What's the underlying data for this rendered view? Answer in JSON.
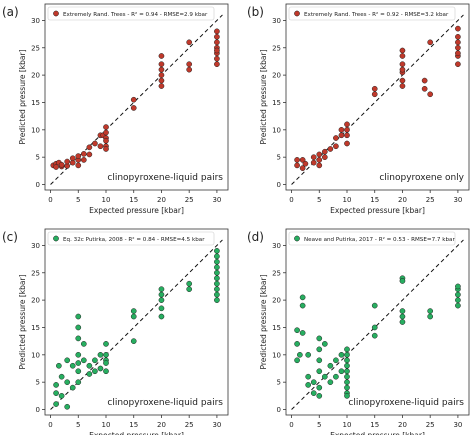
{
  "chart_data": [
    {
      "type": "scatter",
      "panel_label": "(a)",
      "legend_text": "Extremely Rand. Trees - R² = 0.94 - RMSE=2.9 kbar",
      "legend_location": "top-left",
      "annotation": "clinopyroxene-liquid pairs",
      "xlabel": "Expected pressure  [kbar]",
      "ylabel": "Predicted pressure  [kbar]",
      "xlim": [
        -1,
        32
      ],
      "ylim": [
        -1,
        33
      ],
      "xticks": [
        0,
        5,
        10,
        15,
        20,
        25,
        30
      ],
      "yticks": [
        0,
        5,
        10,
        15,
        20,
        25,
        30
      ],
      "identity_line": true,
      "marker_color": "#c0392b",
      "points": [
        [
          0.5,
          3.5
        ],
        [
          1,
          3.8
        ],
        [
          1,
          3.2
        ],
        [
          1.5,
          4
        ],
        [
          2,
          3.3
        ],
        [
          2,
          3.6
        ],
        [
          3,
          3.4
        ],
        [
          3,
          4.2
        ],
        [
          4,
          4
        ],
        [
          4,
          4.8
        ],
        [
          5,
          4.5
        ],
        [
          5,
          3.5
        ],
        [
          5,
          5.2
        ],
        [
          6,
          5.6
        ],
        [
          6,
          4.5
        ],
        [
          7,
          5.5
        ],
        [
          7,
          6.8
        ],
        [
          8,
          7.5
        ],
        [
          9,
          7
        ],
        [
          9,
          9
        ],
        [
          9.5,
          9
        ],
        [
          10,
          10.5
        ],
        [
          10,
          9.5
        ],
        [
          10,
          8.5
        ],
        [
          10,
          8
        ],
        [
          10,
          7
        ],
        [
          10,
          6.5
        ],
        [
          15,
          15.5
        ],
        [
          15,
          14
        ],
        [
          20,
          18
        ],
        [
          20,
          20
        ],
        [
          20,
          21
        ],
        [
          20,
          22
        ],
        [
          20,
          23.5
        ],
        [
          20,
          19
        ],
        [
          25,
          21
        ],
        [
          25,
          22
        ],
        [
          25,
          26
        ],
        [
          30,
          22
        ],
        [
          30,
          23
        ],
        [
          30,
          24
        ],
        [
          30,
          25
        ],
        [
          30,
          26
        ],
        [
          30,
          27
        ],
        [
          30,
          28
        ],
        [
          30,
          24.5
        ]
      ]
    },
    {
      "type": "scatter",
      "panel_label": "(b)",
      "legend_text": "Extremely Rand. Trees - R² = 0.92 - RMSE=3.2 kbar",
      "legend_location": "top-left",
      "annotation": "clinopyroxene only",
      "xlabel": "Expected pressure  [kbar]",
      "ylabel": "Predicted pressure  [kbar]",
      "xlim": [
        -1,
        32
      ],
      "ylim": [
        -1,
        33
      ],
      "xticks": [
        0,
        5,
        10,
        15,
        20,
        25,
        30
      ],
      "yticks": [
        0,
        5,
        10,
        15,
        20,
        25,
        30
      ],
      "identity_line": true,
      "marker_color": "#c0392b",
      "points": [
        [
          1,
          4.5
        ],
        [
          1,
          3.5
        ],
        [
          2,
          3
        ],
        [
          2,
          4.5
        ],
        [
          2.5,
          3.8
        ],
        [
          4,
          4
        ],
        [
          4,
          5
        ],
        [
          5,
          5.5
        ],
        [
          5,
          4.5
        ],
        [
          5,
          3.5
        ],
        [
          6,
          6
        ],
        [
          6,
          5
        ],
        [
          7,
          6.5
        ],
        [
          8,
          8.5
        ],
        [
          8,
          7
        ],
        [
          9,
          10
        ],
        [
          9,
          9
        ],
        [
          10,
          11
        ],
        [
          10,
          10
        ],
        [
          10,
          9
        ],
        [
          10,
          7.5
        ],
        [
          15,
          16.5
        ],
        [
          15,
          17.5
        ],
        [
          20,
          19
        ],
        [
          20,
          20.5
        ],
        [
          20,
          22
        ],
        [
          20,
          23.5
        ],
        [
          20,
          24.5
        ],
        [
          20,
          21
        ],
        [
          20,
          18
        ],
        [
          24,
          17.5
        ],
        [
          24,
          19
        ],
        [
          25,
          16.5
        ],
        [
          25,
          26
        ],
        [
          30,
          22
        ],
        [
          30,
          23.5
        ],
        [
          30,
          25
        ],
        [
          30,
          26
        ],
        [
          30,
          27
        ],
        [
          30,
          28.5
        ],
        [
          30,
          24
        ]
      ]
    },
    {
      "type": "scatter",
      "panel_label": "(c)",
      "legend_text": "Eq. 32c  Putirka, 2008 - R² = 0.84 - RMSE=4.5 kbar",
      "legend_location": "top-left",
      "annotation": "clinopyroxene-liquid pairs",
      "xlabel": "Expected pressure  [kbar]",
      "ylabel": "Predicted pressure  [kbar]",
      "xlim": [
        -1,
        32
      ],
      "ylim": [
        -1,
        33
      ],
      "xticks": [
        0,
        5,
        10,
        15,
        20,
        25,
        30
      ],
      "yticks": [
        0,
        5,
        10,
        15,
        20,
        25,
        30
      ],
      "identity_line": true,
      "marker_color": "#27ae60",
      "points": [
        [
          1,
          1
        ],
        [
          1,
          3
        ],
        [
          1,
          4.5
        ],
        [
          1.5,
          8
        ],
        [
          2,
          6
        ],
        [
          2,
          2.5
        ],
        [
          3,
          9
        ],
        [
          3,
          5
        ],
        [
          3,
          0.5
        ],
        [
          4,
          8
        ],
        [
          4,
          4
        ],
        [
          5,
          17
        ],
        [
          5,
          15
        ],
        [
          5,
          13
        ],
        [
          5,
          10
        ],
        [
          5,
          8.5
        ],
        [
          5,
          7
        ],
        [
          5,
          5
        ],
        [
          6,
          12
        ],
        [
          6,
          9
        ],
        [
          7,
          8
        ],
        [
          7,
          6.5
        ],
        [
          8,
          7
        ],
        [
          8,
          9
        ],
        [
          9,
          10
        ],
        [
          9,
          7.5
        ],
        [
          10,
          12
        ],
        [
          10,
          10
        ],
        [
          10,
          9
        ],
        [
          10,
          8.5
        ],
        [
          10,
          7
        ],
        [
          15,
          18
        ],
        [
          15,
          17
        ],
        [
          15,
          12.5
        ],
        [
          20,
          20
        ],
        [
          20,
          21
        ],
        [
          20,
          22
        ],
        [
          20,
          18.5
        ],
        [
          20,
          17
        ],
        [
          25,
          22
        ],
        [
          25,
          23
        ],
        [
          30,
          20
        ],
        [
          30,
          21
        ],
        [
          30,
          22
        ],
        [
          30,
          23
        ],
        [
          30,
          24
        ],
        [
          30,
          25
        ],
        [
          30,
          26
        ],
        [
          30,
          27
        ],
        [
          30,
          28
        ],
        [
          30,
          29
        ]
      ]
    },
    {
      "type": "scatter",
      "panel_label": "(d)",
      "legend_text": "Neave and Putirka, 2017 - R² = 0.53 - RMSE=7.7 kbar",
      "legend_location": "top-left",
      "annotation": "clinopyroxene-liquid pairs",
      "xlabel": "Expected pressure  [kbar]",
      "ylabel": "Predicted pressure  [kbar]",
      "xlim": [
        -1,
        32
      ],
      "ylim": [
        -1,
        33
      ],
      "xticks": [
        0,
        5,
        10,
        15,
        20,
        25,
        30
      ],
      "yticks": [
        0,
        5,
        10,
        15,
        20,
        25,
        30
      ],
      "identity_line": true,
      "marker_color": "#27ae60",
      "points": [
        [
          1,
          9
        ],
        [
          1,
          12
        ],
        [
          1,
          14.5
        ],
        [
          1.5,
          10
        ],
        [
          2,
          20.5
        ],
        [
          2,
          19
        ],
        [
          2,
          14
        ],
        [
          3,
          10
        ],
        [
          3,
          6
        ],
        [
          3,
          4.5
        ],
        [
          4,
          5
        ],
        [
          4,
          3
        ],
        [
          5,
          13
        ],
        [
          5,
          11
        ],
        [
          5,
          9
        ],
        [
          5,
          7
        ],
        [
          5,
          4
        ],
        [
          5,
          2.5
        ],
        [
          6,
          12
        ],
        [
          6,
          6
        ],
        [
          7,
          8
        ],
        [
          7,
          5
        ],
        [
          8,
          9
        ],
        [
          8,
          6
        ],
        [
          9,
          10
        ],
        [
          9,
          7
        ],
        [
          10,
          11
        ],
        [
          10,
          10
        ],
        [
          10,
          9
        ],
        [
          10,
          8
        ],
        [
          10,
          7
        ],
        [
          10,
          6
        ],
        [
          10,
          5
        ],
        [
          10,
          4
        ],
        [
          10,
          3
        ],
        [
          10,
          2.5
        ],
        [
          15,
          19
        ],
        [
          15,
          15
        ],
        [
          15,
          13.5
        ],
        [
          20,
          24
        ],
        [
          20,
          23.5
        ],
        [
          20,
          18
        ],
        [
          20,
          17
        ],
        [
          20,
          16
        ],
        [
          25,
          17
        ],
        [
          25,
          18
        ],
        [
          30,
          19
        ],
        [
          30,
          20
        ],
        [
          30,
          21
        ],
        [
          30,
          22
        ],
        [
          30,
          22.5
        ]
      ]
    }
  ]
}
